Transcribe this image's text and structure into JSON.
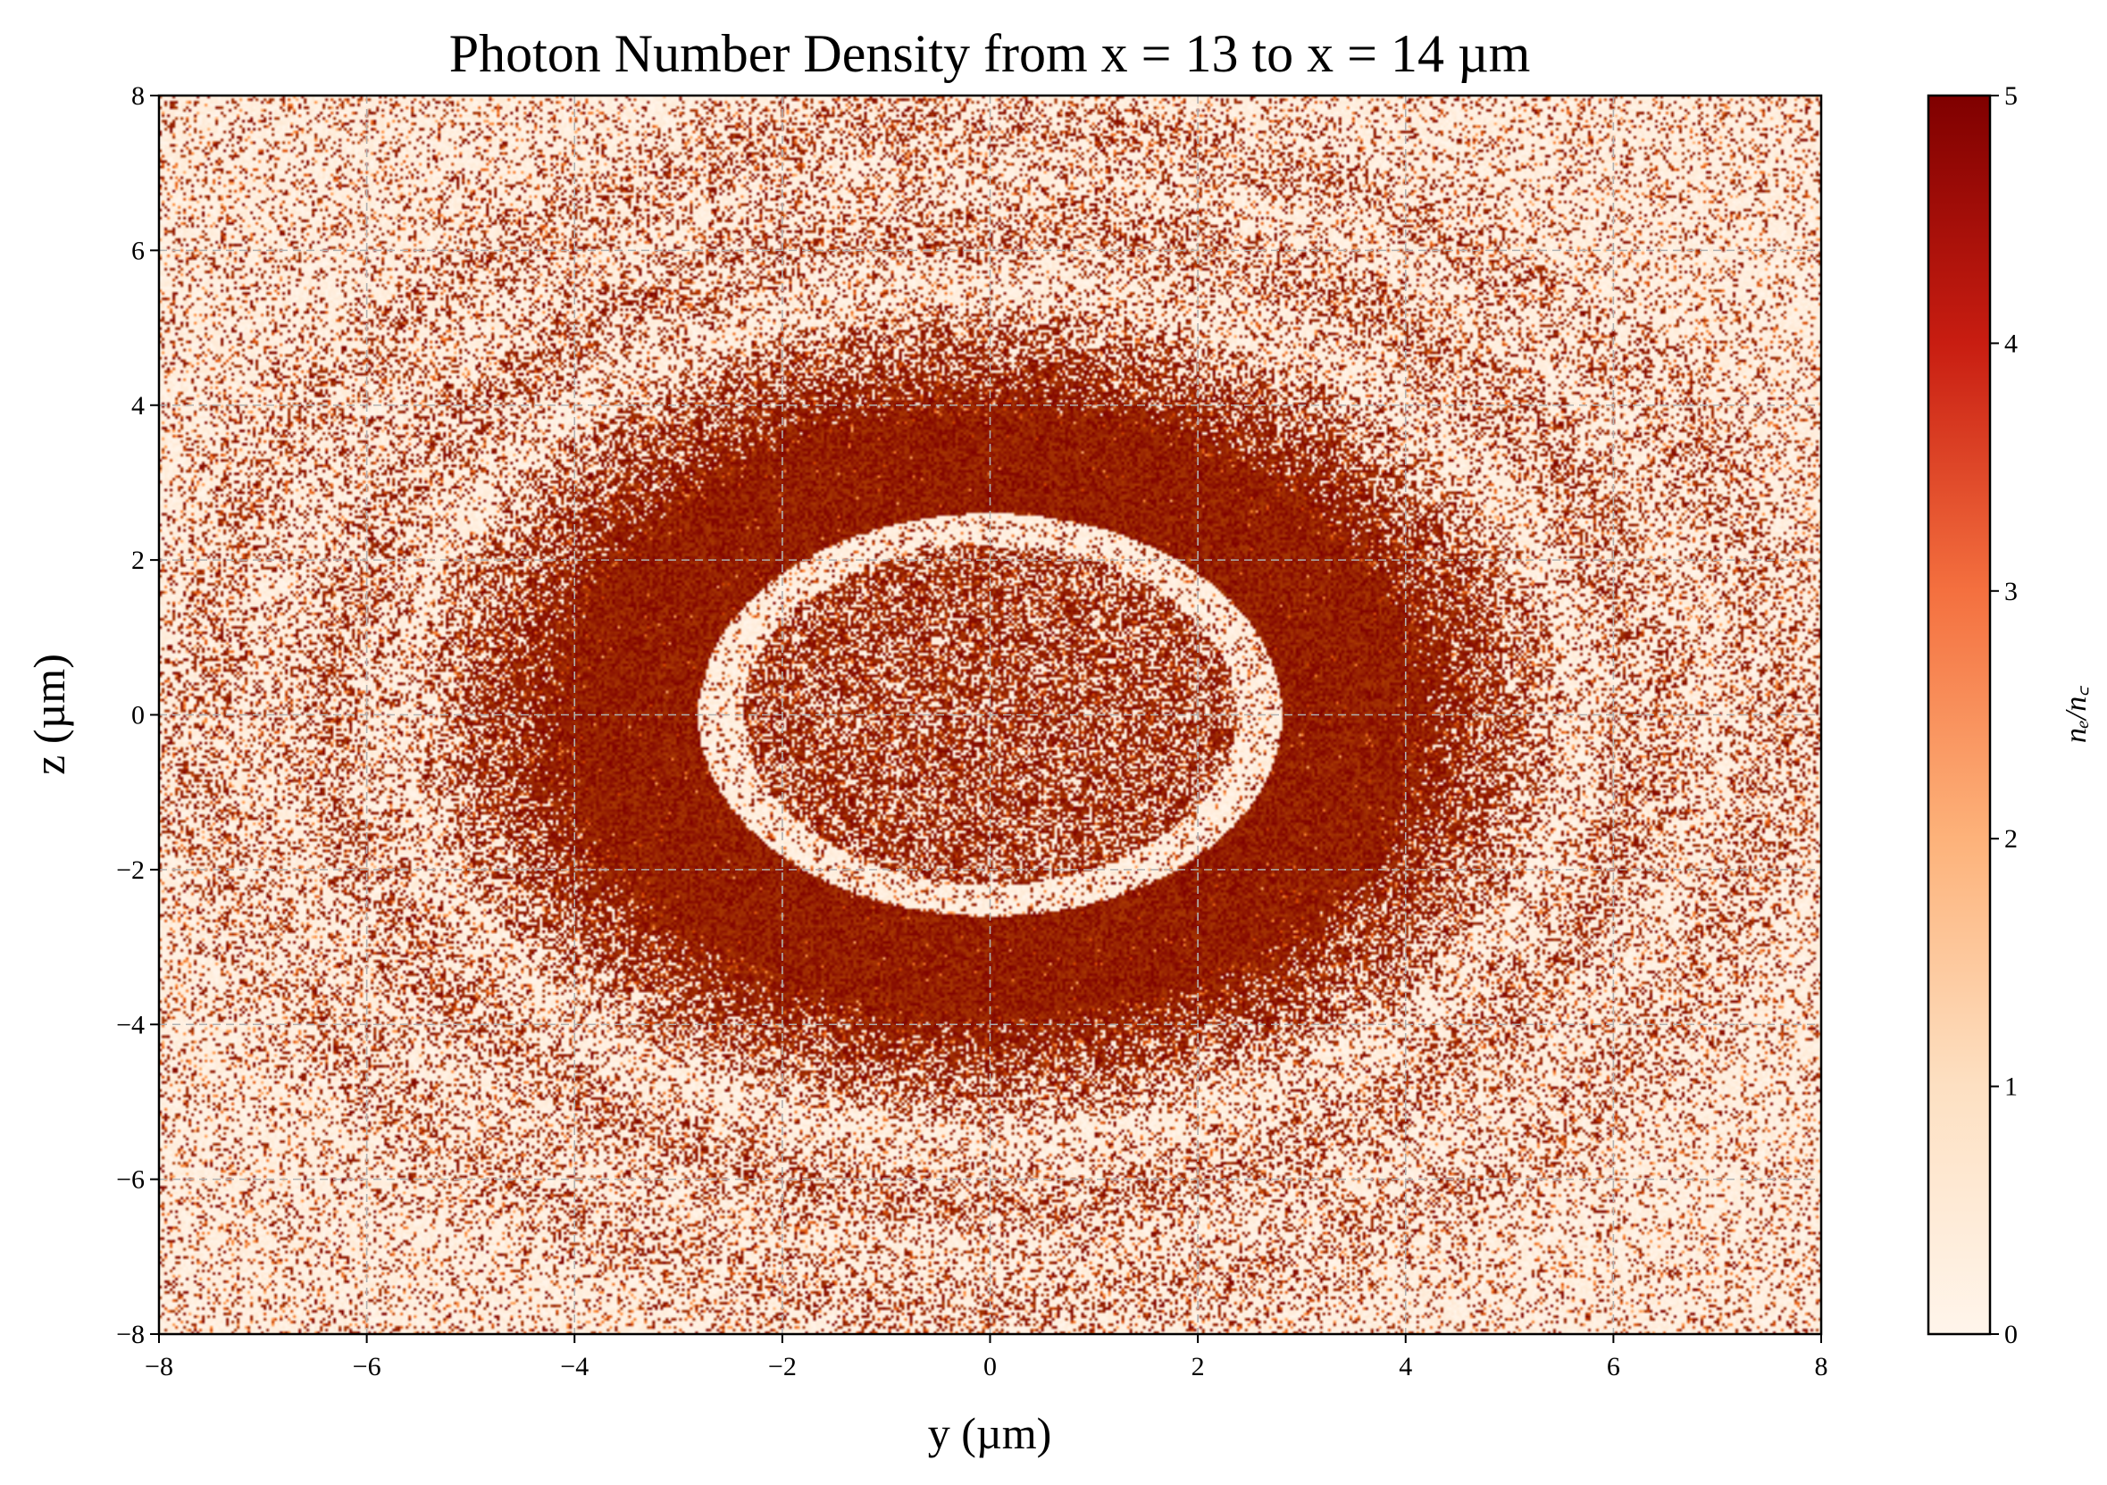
{
  "chart_data": {
    "type": "heatmap",
    "title": "Photon Number Density from x = 13 to x = 14 µm",
    "xlabel": "y (µm)",
    "ylabel": "z (µm)",
    "xlim": [
      -8,
      8
    ],
    "ylim": [
      -8,
      8
    ],
    "xticks": [
      "−8",
      "−6",
      "−4",
      "−2",
      "0",
      "2",
      "4",
      "6",
      "8"
    ],
    "yticks": [
      "8",
      "6",
      "4",
      "2",
      "0",
      "−2",
      "−4",
      "−6",
      "−8"
    ],
    "grid": true,
    "colorbar": {
      "label": "nₑ/n꜀",
      "range": [
        0,
        5
      ],
      "ticks": [
        "0",
        "1",
        "2",
        "3",
        "4",
        "5"
      ],
      "colormap": [
        "#fff5eb",
        "#fdd0a2",
        "#fd8d3c",
        "#d94801",
        "#a63603",
        "#7f0000"
      ]
    },
    "structure": [
      {
        "feature": "inner hollow core (mixed density)",
        "y_center": 0.0,
        "z_center": 0.0,
        "radius_y": 2.7,
        "radius_z": 2.5
      },
      {
        "feature": "saturated dense shell",
        "y_outer_radius": 4.7,
        "z_outer_radius": 4.5,
        "value": 5
      },
      {
        "feature": "diffuse ring",
        "y_radius": 6.3,
        "z_radius": 6.2
      },
      {
        "feature": "outer diffuse ring",
        "y_radius": 7.6,
        "z_radius": 7.6
      }
    ]
  }
}
